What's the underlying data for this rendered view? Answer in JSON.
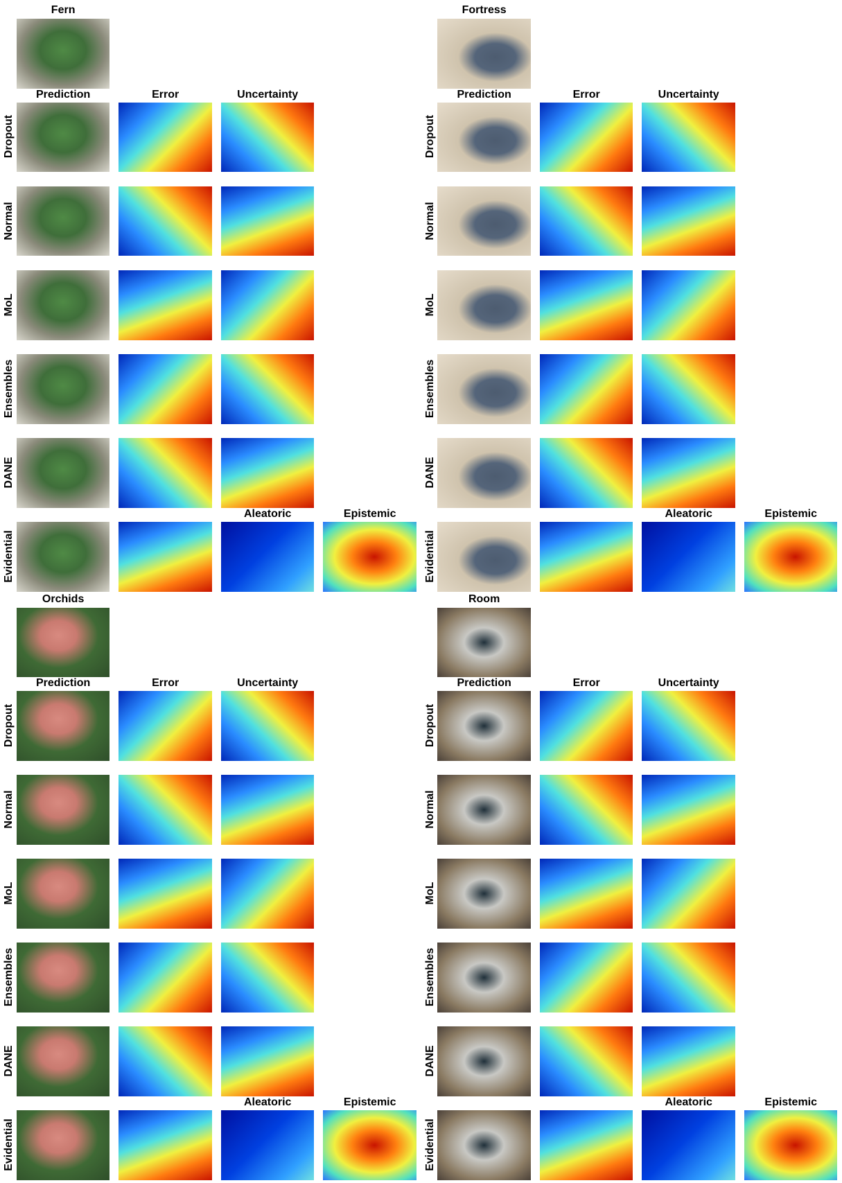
{
  "panels": [
    {
      "title": "Fern",
      "columns": [
        "Prediction",
        "Error",
        "Uncertainty"
      ],
      "rows": [
        "Dropout",
        "Normal",
        "MoL",
        "Ensembles",
        "DANE",
        "Evidential"
      ],
      "extra_columns": [
        "Aleatoric",
        "Epistemic"
      ]
    },
    {
      "title": "Fortress",
      "columns": [
        "Prediction",
        "Error",
        "Uncertainty"
      ],
      "rows": [
        "Dropout",
        "Normal",
        "MoL",
        "Ensembles",
        "DANE",
        "Evidential"
      ],
      "extra_columns": [
        "Aleatoric",
        "Epistemic"
      ]
    },
    {
      "title": "Orchids",
      "columns": [
        "Prediction",
        "Error",
        "Uncertainty"
      ],
      "rows": [
        "Dropout",
        "Normal",
        "MoL",
        "Ensembles",
        "DANE",
        "Evidential"
      ],
      "extra_columns": [
        "Aleatoric",
        "Epistemic"
      ]
    },
    {
      "title": "Room",
      "columns": [
        "Prediction",
        "Error",
        "Uncertainty"
      ],
      "rows": [
        "Dropout",
        "Normal",
        "MoL",
        "Ensembles",
        "DANE",
        "Evidential"
      ],
      "extra_columns": [
        "Aleatoric",
        "Epistemic"
      ]
    }
  ]
}
